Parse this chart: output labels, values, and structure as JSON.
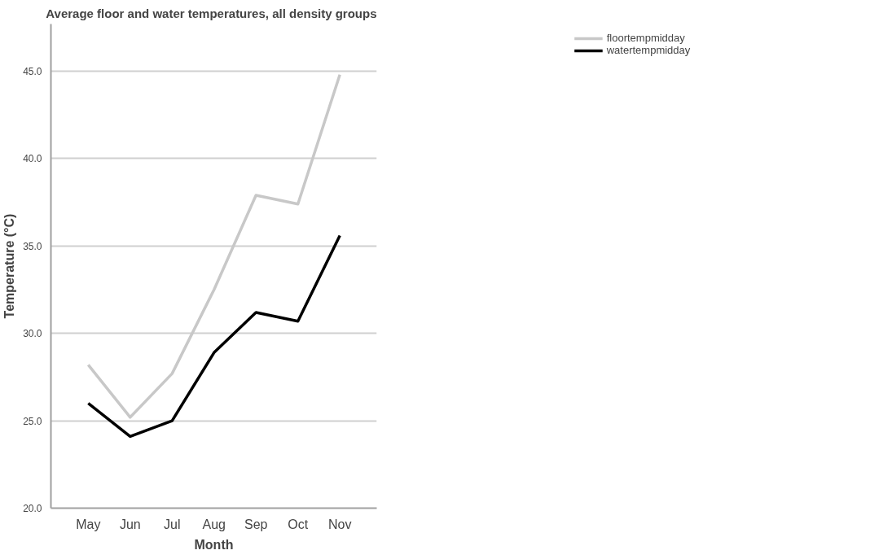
{
  "chart_data": {
    "type": "line",
    "title": "Average floor and water temperatures, all density groups",
    "xlabel": "Month",
    "ylabel": "Temperature (°C)",
    "categories": [
      "May",
      "Jun",
      "Jul",
      "Aug",
      "Sep",
      "Oct",
      "Nov"
    ],
    "series": [
      {
        "name": "floortempmidday",
        "color": "#c8c8c8",
        "values": [
          28.2,
          25.2,
          27.7,
          32.5,
          37.9,
          37.4,
          44.8
        ]
      },
      {
        "name": "watertempmidday",
        "color": "#000000",
        "values": [
          26.0,
          24.1,
          25.0,
          28.9,
          31.2,
          30.7,
          35.6
        ]
      }
    ],
    "ylim": [
      20,
      47.7
    ],
    "yticks": [
      {
        "value": 20,
        "label": "20.0"
      },
      {
        "value": 25,
        "label": "25.0"
      },
      {
        "value": 30,
        "label": "30.0"
      },
      {
        "value": 35,
        "label": "35.0"
      },
      {
        "value": 40,
        "label": "40.0"
      },
      {
        "value": 45,
        "label": "45.0"
      }
    ],
    "grid": "y",
    "legend": "top right",
    "marker": "none",
    "line_style": "solid"
  }
}
